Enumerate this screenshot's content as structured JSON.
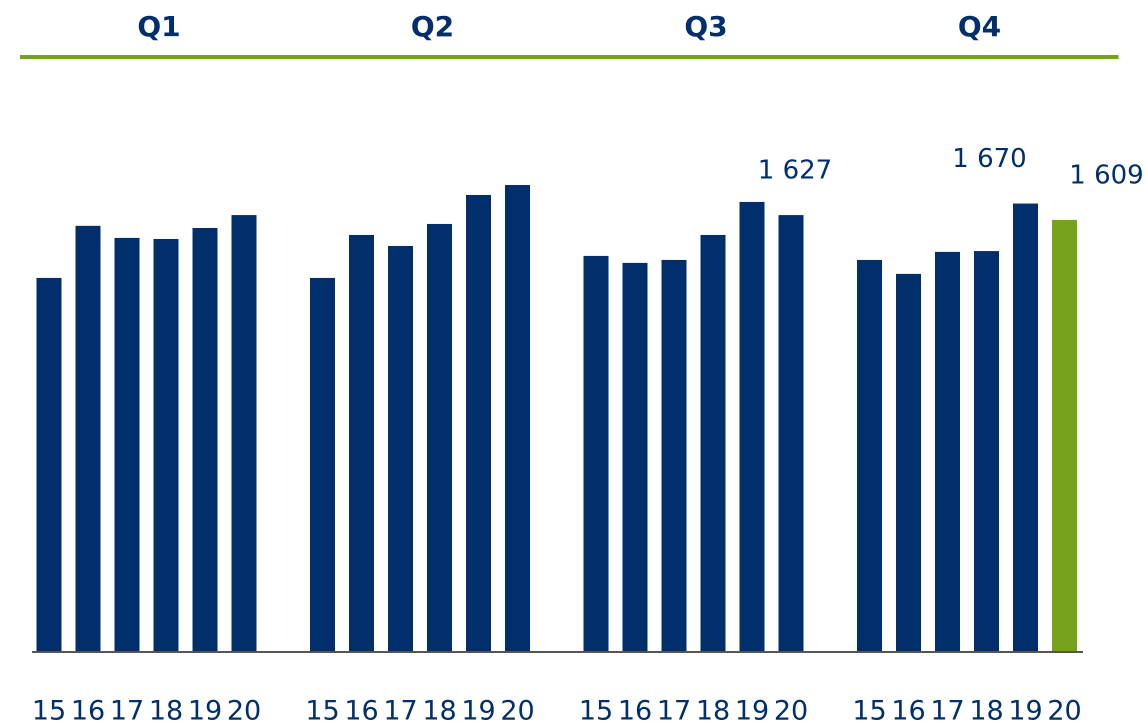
{
  "chart_data": {
    "type": "bar",
    "groups": [
      {
        "name": "Q1",
        "categories": [
          "15",
          "16",
          "17",
          "18",
          "19",
          "20"
        ],
        "values": [
          1393,
          1587,
          1542,
          1538,
          1579,
          1627
        ],
        "value_labels": [
          null,
          null,
          null,
          null,
          null,
          null
        ]
      },
      {
        "name": "Q2",
        "categories": [
          "15",
          "16",
          "17",
          "18",
          "19",
          "20"
        ],
        "values": [
          1393,
          1553,
          1512,
          1594,
          1702,
          1739
        ],
        "value_labels": [
          null,
          null,
          null,
          null,
          null,
          null
        ]
      },
      {
        "name": "Q3",
        "categories": [
          "15",
          "16",
          "17",
          "18",
          "19",
          "20"
        ],
        "values": [
          1475,
          1449,
          1460,
          1553,
          1676,
          1627
        ],
        "value_labels": [
          null,
          null,
          null,
          null,
          null,
          "1 627"
        ]
      },
      {
        "name": "Q4",
        "categories": [
          "15",
          "16",
          "17",
          "18",
          "19",
          "20"
        ],
        "values": [
          1460,
          1408,
          1490,
          1493,
          1670,
          1609
        ],
        "value_labels": [
          null,
          null,
          null,
          null,
          "1 670",
          "1 609"
        ]
      }
    ],
    "color": "#002f6c",
    "highlight": {
      "group": 3,
      "index": 5,
      "color": "#76a21e"
    },
    "header_color": "#76a21e",
    "ylim": [
      0,
      2428
    ]
  }
}
